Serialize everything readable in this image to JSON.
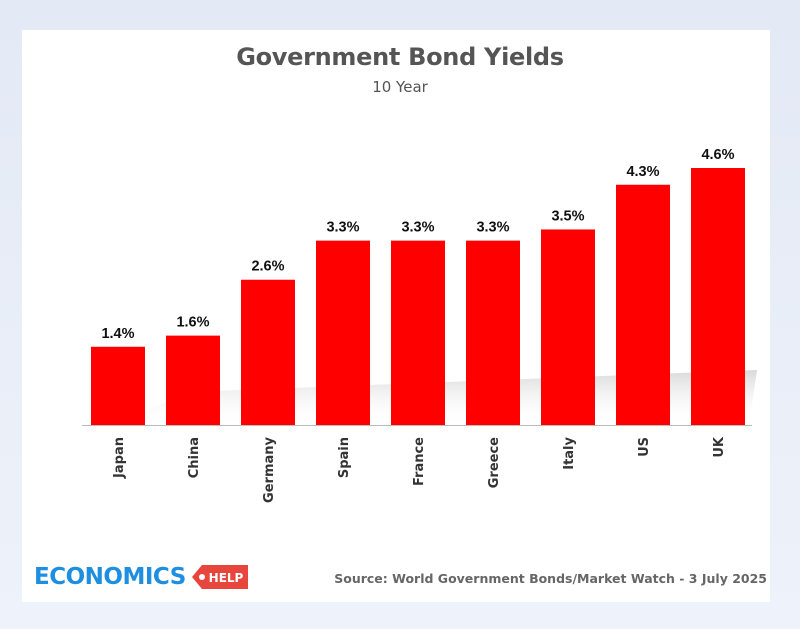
{
  "chart_data": {
    "type": "bar",
    "title": "Government Bond Yields",
    "subtitle": "10 Year",
    "categories": [
      "Japan",
      "China",
      "Germany",
      "Spain",
      "France",
      "Greece",
      "Italy",
      "US",
      "UK"
    ],
    "values": [
      1.4,
      1.6,
      2.6,
      3.3,
      3.3,
      3.3,
      3.5,
      4.3,
      4.6
    ],
    "data_labels": [
      "1.4%",
      "1.6%",
      "2.6%",
      "3.3%",
      "3.3%",
      "3.3%",
      "3.5%",
      "4.3%",
      "4.6%"
    ],
    "ylim": [
      0,
      4.6
    ],
    "grid": false,
    "legend": "none",
    "bar_color": "#ff0000"
  },
  "footer": {
    "logo_word": "ECONOMICS",
    "logo_tag": "HELP",
    "source": "Source: World Government Bonds/Market Watch - 3 July 2025"
  },
  "colors": {
    "logo_blue": "#1e8fe0",
    "logo_red": "#e8453c",
    "text_gray": "#555555"
  }
}
